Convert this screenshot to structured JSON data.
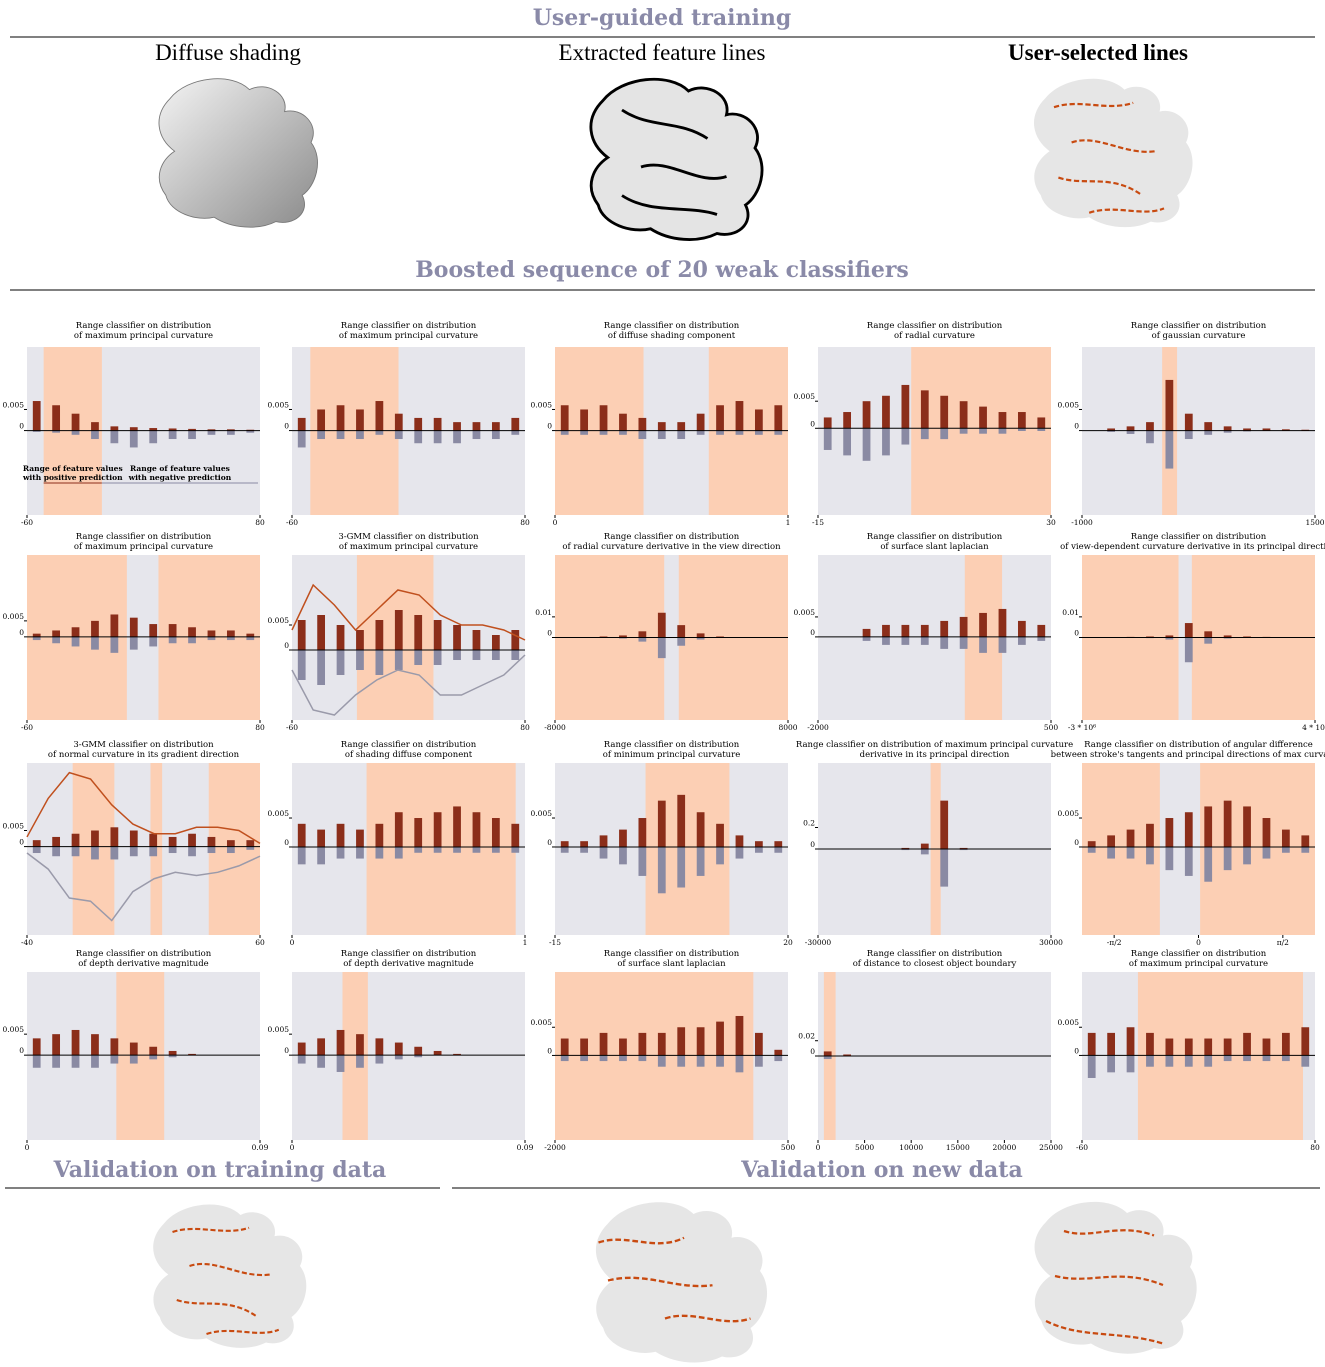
{
  "header": {
    "title": "User-guided training",
    "panels": [
      "Diffuse shading",
      "Extracted feature lines",
      "User-selected lines"
    ]
  },
  "section_title": "Boosted sequence of 20 weak classifiers",
  "validation": {
    "training": "Validation on training data",
    "new": "Validation on new data"
  },
  "style": {
    "positive_color": "#8b2e1a",
    "negative_color": "#8a8aa3",
    "range_color": "#fccfb4",
    "background_color": "#e6e6ec"
  },
  "chart_data": [
    {
      "type": "bar",
      "title": [
        "Range classifier on distribution",
        "of maximum principal curvature"
      ],
      "xlim": [
        -60,
        80
      ],
      "xticks": [
        -60,
        80
      ],
      "ylim": [
        -0.02,
        0.0198
      ],
      "yticks": [
        0,
        0.005
      ],
      "ranges": [
        [
          -50,
          -15
        ]
      ],
      "positive": [
        0.007,
        0.006,
        0.004,
        0.002,
        0.001,
        0.0008,
        0.0006,
        0.0005,
        0.0004,
        0.0003,
        0.0003,
        0.0002
      ],
      "negative": [
        -0.0003,
        -0.0005,
        -0.001,
        -0.002,
        -0.003,
        -0.004,
        -0.003,
        -0.002,
        -0.002,
        -0.001,
        -0.001,
        -0.0005
      ],
      "annotations": [
        [
          "Range of feature values",
          "with positive prediction"
        ],
        [
          "Range of feature values",
          "with negative prediction"
        ]
      ]
    },
    {
      "type": "bar",
      "title": [
        "Range classifier on distribution",
        "of maximum principal curvature"
      ],
      "xlim": [
        -60,
        80
      ],
      "xticks": [
        -60,
        80
      ],
      "ylim": [
        -0.02,
        0.0198
      ],
      "yticks": [
        0,
        0.005
      ],
      "ranges": [
        [
          -49,
          4
        ]
      ],
      "positive": [
        0.003,
        0.005,
        0.006,
        0.005,
        0.007,
        0.004,
        0.003,
        0.003,
        0.002,
        0.002,
        0.002,
        0.003
      ],
      "negative": [
        -0.004,
        -0.002,
        -0.002,
        -0.002,
        -0.001,
        -0.002,
        -0.003,
        -0.003,
        -0.003,
        -0.002,
        -0.002,
        -0.001
      ]
    },
    {
      "type": "bar",
      "title": [
        "Range classifier on distribution",
        "of diffuse shading component"
      ],
      "xlim": [
        0,
        1
      ],
      "xticks": [
        0,
        1
      ],
      "ylim": [
        -0.02,
        0.0198
      ],
      "yticks": [
        0,
        0.005
      ],
      "ranges": [
        [
          0,
          0.38
        ],
        [
          0.66,
          1
        ]
      ],
      "positive": [
        0.006,
        0.005,
        0.006,
        0.004,
        0.003,
        0.002,
        0.002,
        0.004,
        0.006,
        0.007,
        0.005,
        0.006
      ],
      "negative": [
        -0.001,
        -0.001,
        -0.001,
        -0.001,
        -0.002,
        -0.002,
        -0.002,
        -0.001,
        -0.001,
        -0.001,
        -0.001,
        -0.001
      ]
    },
    {
      "type": "bar",
      "title": [
        "Range classifier on distribution",
        "of radial curvature"
      ],
      "xlim": [
        -15,
        30
      ],
      "xticks": [
        -15,
        30
      ],
      "ylim": [
        -0.016,
        0.015
      ],
      "yticks": [
        0,
        0.005
      ],
      "ranges": [
        [
          3,
          30
        ]
      ],
      "positive": [
        0.002,
        0.003,
        0.005,
        0.006,
        0.008,
        0.007,
        0.006,
        0.005,
        0.004,
        0.003,
        0.003,
        0.002
      ],
      "negative": [
        -0.004,
        -0.005,
        -0.006,
        -0.005,
        -0.003,
        -0.002,
        -0.002,
        -0.001,
        -0.001,
        -0.001,
        -0.0005,
        -0.0005
      ]
    },
    {
      "type": "bar",
      "title": [
        "Range classifier on distribution",
        "of gaussian curvature"
      ],
      "xlim": [
        -1000,
        1500
      ],
      "xticks": [
        -1000,
        1500
      ],
      "ylim": [
        -0.02,
        0.0198
      ],
      "yticks": [
        0,
        0.005
      ],
      "ranges": [
        [
          -140,
          20
        ]
      ],
      "positive": [
        0,
        0.0005,
        0.001,
        0.002,
        0.012,
        0.004,
        0.002,
        0.001,
        0.0005,
        0.0005,
        0.0003,
        0.0002
      ],
      "negative": [
        0,
        -0.0003,
        -0.0008,
        -0.003,
        -0.009,
        -0.002,
        -0.001,
        -0.0005,
        -0.0002,
        0,
        0,
        0
      ]
    },
    {
      "type": "bar",
      "title": [
        "Range classifier on distribution",
        "of maximum principal curvature"
      ],
      "xlim": [
        -60,
        80
      ],
      "xticks": [
        -60,
        80
      ],
      "ylim": [
        -0.026,
        0.0256
      ],
      "yticks": [
        0,
        0.005
      ],
      "ranges": [
        [
          -60,
          0
        ],
        [
          19,
          80
        ]
      ],
      "positive": [
        0.001,
        0.002,
        0.003,
        0.005,
        0.007,
        0.006,
        0.004,
        0.004,
        0.003,
        0.002,
        0.002,
        0.001
      ],
      "negative": [
        -0.001,
        -0.002,
        -0.003,
        -0.004,
        -0.005,
        -0.004,
        -0.003,
        -0.002,
        -0.002,
        -0.001,
        -0.001,
        -0.001
      ]
    },
    {
      "type": "bar",
      "title": [
        "3-GMM classifier on distribution",
        "of maximum principal curvature"
      ],
      "xlim": [
        -60,
        80
      ],
      "xticks": [
        -60,
        80
      ],
      "ylim": [
        -0.014,
        0.019
      ],
      "yticks": [
        0,
        0.005
      ],
      "ranges": [
        [
          -21,
          25
        ]
      ],
      "positive": [
        0.006,
        0.007,
        0.005,
        0.004,
        0.006,
        0.008,
        0.007,
        0.006,
        0.005,
        0.004,
        0.003,
        0.004
      ],
      "negative": [
        -0.006,
        -0.007,
        -0.005,
        -0.004,
        -0.005,
        -0.004,
        -0.003,
        -0.003,
        -0.002,
        -0.002,
        -0.002,
        -0.002
      ],
      "gmm_positive": [
        0.004,
        0.013,
        0.009,
        0.004,
        0.008,
        0.012,
        0.011,
        0.007,
        0.005,
        0.005,
        0.004,
        0.002
      ],
      "gmm_negative": [
        -0.004,
        -0.012,
        -0.013,
        -0.009,
        -0.006,
        -0.004,
        -0.005,
        -0.009,
        -0.009,
        -0.007,
        -0.005,
        -0.001
      ]
    },
    {
      "type": "bar",
      "title": [
        "Range classifier on distribution",
        "of radial curvature derivative in the view direction"
      ],
      "xlim": [
        -8000,
        8000
      ],
      "xticks": [
        -8000,
        8000
      ],
      "ylim": [
        -0.04,
        0.04
      ],
      "yticks": [
        0,
        0.01
      ],
      "ranges": [
        [
          -8000,
          -500
        ],
        [
          500,
          8000
        ]
      ],
      "positive": [
        0,
        0,
        0.0005,
        0.001,
        0.003,
        0.012,
        0.006,
        0.002,
        0.0005,
        0,
        0,
        0
      ],
      "negative": [
        0,
        0,
        0,
        -0.0005,
        -0.002,
        -0.01,
        -0.004,
        -0.001,
        0,
        0,
        0,
        0
      ]
    },
    {
      "type": "bar",
      "title": [
        "Range classifier on distribution",
        "of surface slant laplacian"
      ],
      "xlim": [
        -2000,
        500
      ],
      "xticks": [
        -2000,
        500
      ],
      "ylim": [
        -0.0208,
        0.0205
      ],
      "yticks": [
        0,
        0.005
      ],
      "ranges": [
        [
          -425,
          -25
        ]
      ],
      "positive": [
        0,
        0,
        0.002,
        0.003,
        0.003,
        0.003,
        0.004,
        0.005,
        0.006,
        0.007,
        0.004,
        0.003
      ],
      "negative": [
        0,
        0,
        -0.001,
        -0.002,
        -0.002,
        -0.002,
        -0.003,
        -0.003,
        -0.004,
        -0.004,
        -0.002,
        -0.001
      ]
    },
    {
      "type": "bar",
      "title": [
        "Range classifier on distribution",
        "of view-dependent curvature derivative in its principal direction"
      ],
      "xlim": [
        -3000000,
        4000000
      ],
      "xticks": [
        {
          "value": -3000000,
          "label": "-3 * 10⁶"
        },
        {
          "value": 4000000,
          "label": "4 * 10⁶"
        }
      ],
      "ylim": [
        -0.04,
        0.04
      ],
      "yticks": [
        0,
        0.01
      ],
      "ranges": [
        [
          -3000000,
          -100000
        ],
        [
          300000,
          4000000
        ]
      ],
      "positive": [
        0,
        0,
        0.0003,
        0.0005,
        0.001,
        0.007,
        0.003,
        0.001,
        0.0005,
        0.0003,
        0,
        0
      ],
      "negative": [
        0,
        0,
        0,
        -0.0003,
        -0.001,
        -0.012,
        -0.003,
        -0.0005,
        0,
        0,
        0,
        0
      ]
    },
    {
      "type": "bar",
      "title": [
        "3-GMM classifier on distribution",
        "of normal curvature in its gradient direction"
      ],
      "xlim": [
        -40,
        60
      ],
      "xticks": [
        -40,
        60
      ],
      "ylim": [
        -0.0275,
        0.026
      ],
      "yticks": [
        0,
        0.005
      ],
      "ranges": [
        [
          -20.4,
          -2.5
        ],
        [
          13,
          18
        ],
        [
          38,
          60
        ]
      ],
      "positive": [
        0.002,
        0.003,
        0.004,
        0.005,
        0.006,
        0.005,
        0.004,
        0.003,
        0.004,
        0.003,
        0.002,
        0.002
      ],
      "negative": [
        -0.002,
        -0.003,
        -0.003,
        -0.004,
        -0.004,
        -0.003,
        -0.003,
        -0.002,
        -0.003,
        -0.002,
        -0.002,
        -0.001
      ],
      "gmm_positive": [
        0.003,
        0.015,
        0.023,
        0.021,
        0.013,
        0.007,
        0.004,
        0.004,
        0.006,
        0.006,
        0.005,
        0.001
      ],
      "gmm_negative": [
        -0.002,
        -0.007,
        -0.016,
        -0.017,
        -0.023,
        -0.014,
        -0.01,
        -0.008,
        -0.009,
        -0.008,
        -0.006,
        -0.003
      ]
    },
    {
      "type": "bar",
      "title": [
        "Range classifier on distribution",
        "of shading diffuse component"
      ],
      "xlim": [
        0,
        1
      ],
      "xticks": [
        0,
        1
      ],
      "ylim": [
        -0.0152,
        0.0145
      ],
      "yticks": [
        0,
        0.005
      ],
      "ranges": [
        [
          0.32,
          0.96
        ]
      ],
      "positive": [
        0.004,
        0.003,
        0.004,
        0.003,
        0.004,
        0.006,
        0.005,
        0.006,
        0.007,
        0.006,
        0.005,
        0.004
      ],
      "negative": [
        -0.003,
        -0.003,
        -0.002,
        -0.002,
        -0.002,
        -0.002,
        -0.001,
        -0.001,
        -0.001,
        -0.001,
        -0.001,
        -0.001
      ]
    },
    {
      "type": "bar",
      "title": [
        "Range classifier on distribution",
        "of minimum principal curvature"
      ],
      "xlim": [
        -15,
        20
      ],
      "xticks": [
        -15,
        20
      ],
      "ylim": [
        -0.0152,
        0.0145
      ],
      "yticks": [
        0,
        0.005
      ],
      "ranges": [
        [
          -1.4,
          11.2
        ]
      ],
      "positive": [
        0.001,
        0.001,
        0.002,
        0.003,
        0.005,
        0.008,
        0.009,
        0.006,
        0.004,
        0.002,
        0.001,
        0.001
      ],
      "negative": [
        -0.001,
        -0.001,
        -0.002,
        -0.003,
        -0.005,
        -0.008,
        -0.007,
        -0.005,
        -0.003,
        -0.002,
        -0.001,
        -0.001
      ]
    },
    {
      "type": "bar",
      "title": [
        "Range classifier on distribution of maximum principal curvature",
        "derivative in its principal direction"
      ],
      "xlim": [
        -30000,
        30000
      ],
      "xticks": [
        -30000,
        30000
      ],
      "ylim": [
        -0.8,
        0.8
      ],
      "yticks": [
        0,
        0.2
      ],
      "ranges": [
        [
          -1000,
          1600
        ]
      ],
      "positive": [
        0,
        0,
        0,
        0,
        0.01,
        0.05,
        0.45,
        0.01,
        0,
        0,
        0,
        0
      ],
      "negative": [
        0,
        0,
        0,
        0,
        -0.01,
        -0.05,
        -0.35,
        -0.01,
        0,
        0,
        0,
        0
      ]
    },
    {
      "type": "bar",
      "title": [
        "Range classifier on distribution of angular difference",
        "between stroke's tangents and principal directions of max curvature"
      ],
      "xlim": [
        -2.17,
        2.17
      ],
      "xticks": [
        {
          "value": -1.571,
          "label": "-π/2"
        },
        0,
        {
          "value": 1.571,
          "label": "π/2"
        }
      ],
      "ylim": [
        -0.0152,
        0.0145
      ],
      "yticks": [
        0,
        0.005
      ],
      "ranges": [
        [
          -2.17,
          -0.72
        ],
        [
          0.03,
          2.17
        ]
      ],
      "positive": [
        0.001,
        0.002,
        0.003,
        0.004,
        0.005,
        0.006,
        0.007,
        0.008,
        0.007,
        0.005,
        0.003,
        0.002
      ],
      "negative": [
        -0.001,
        -0.002,
        -0.002,
        -0.003,
        -0.004,
        -0.005,
        -0.006,
        -0.004,
        -0.003,
        -0.002,
        -0.001,
        -0.001
      ]
    },
    {
      "type": "bar",
      "title": [
        "Range classifier on distribution",
        "of depth derivative magnitude"
      ],
      "xlim": [
        0,
        0.09
      ],
      "xticks": [
        0,
        0.09
      ],
      "ylim": [
        -0.0202,
        0.0198
      ],
      "yticks": [
        0,
        0.005
      ],
      "ranges": [
        [
          0.0345,
          0.053
        ]
      ],
      "positive": [
        0.004,
        0.005,
        0.006,
        0.005,
        0.004,
        0.003,
        0.002,
        0.001,
        0.0003,
        0,
        0,
        0
      ],
      "negative": [
        -0.003,
        -0.003,
        -0.003,
        -0.003,
        -0.002,
        -0.002,
        -0.001,
        -0.0005,
        0,
        0,
        0,
        0
      ]
    },
    {
      "type": "bar",
      "title": [
        "Range classifier on distribution",
        "of depth derivative magnitude"
      ],
      "xlim": [
        0,
        0.09
      ],
      "xticks": [
        0,
        0.09
      ],
      "ylim": [
        -0.0202,
        0.0198
      ],
      "yticks": [
        0,
        0.005
      ],
      "ranges": [
        [
          0.0195,
          0.0293
        ]
      ],
      "positive": [
        0.003,
        0.004,
        0.006,
        0.005,
        0.004,
        0.003,
        0.002,
        0.001,
        0.0003,
        0,
        0,
        0
      ],
      "negative": [
        -0.002,
        -0.003,
        -0.004,
        -0.003,
        -0.002,
        -0.001,
        -0.0005,
        0,
        0,
        0,
        0,
        0
      ]
    },
    {
      "type": "bar",
      "title": [
        "Range classifier on distribution",
        "of surface slant laplacian"
      ],
      "xlim": [
        -2000,
        500
      ],
      "xticks": [
        -2000,
        500
      ],
      "ylim": [
        -0.015,
        0.0148
      ],
      "yticks": [
        0,
        0.005
      ],
      "ranges": [
        [
          -2000,
          128
        ]
      ],
      "positive": [
        0.003,
        0.003,
        0.004,
        0.003,
        0.004,
        0.004,
        0.005,
        0.005,
        0.006,
        0.007,
        0.004,
        0.001
      ],
      "negative": [
        -0.001,
        -0.001,
        -0.001,
        -0.001,
        -0.001,
        -0.002,
        -0.002,
        -0.002,
        -0.002,
        -0.003,
        -0.002,
        -0.001
      ]
    },
    {
      "type": "bar",
      "title": [
        "Range classifier on distribution",
        "of distance to closest object boundary"
      ],
      "xlim": [
        0,
        25000
      ],
      "xticks": [
        0,
        5000,
        10000,
        15000,
        20000,
        25000
      ],
      "ylim": [
        -0.11,
        0.11
      ],
      "yticks": [
        0,
        0.02
      ],
      "ranges": [
        [
          630,
          1890
        ]
      ],
      "positive": [
        0.006,
        0.002,
        0.0005,
        0.0002,
        0,
        0,
        0,
        0,
        0,
        0,
        0,
        0
      ],
      "negative": [
        -0.004,
        -0.0005,
        0,
        0,
        0,
        0,
        0,
        0,
        0,
        0,
        0,
        0
      ]
    },
    {
      "type": "bar",
      "title": [
        "Range classifier on distribution",
        "of maximum principal curvature"
      ],
      "xlim": [
        -60,
        80
      ],
      "xticks": [
        -60,
        80
      ],
      "ylim": [
        -0.015,
        0.0148
      ],
      "yticks": [
        0,
        0.005
      ],
      "ranges": [
        [
          -26.4,
          72.8
        ]
      ],
      "positive": [
        0.004,
        0.004,
        0.005,
        0.004,
        0.003,
        0.003,
        0.003,
        0.003,
        0.004,
        0.003,
        0.004,
        0.005
      ],
      "negative": [
        -0.004,
        -0.003,
        -0.003,
        -0.002,
        -0.002,
        -0.002,
        -0.002,
        -0.001,
        -0.001,
        -0.001,
        -0.001,
        -0.002
      ]
    }
  ]
}
